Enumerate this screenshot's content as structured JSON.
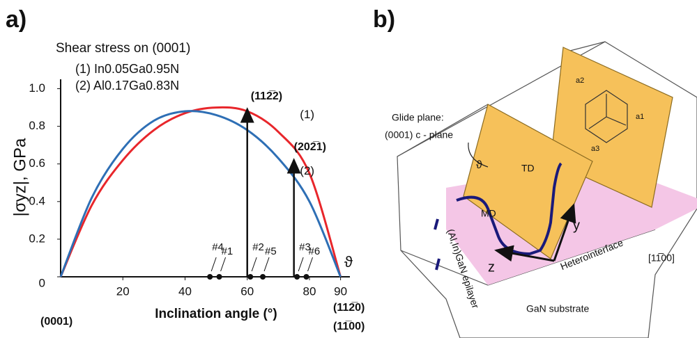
{
  "chart_data": {
    "type": "line",
    "panel_label": "a)",
    "title": "Shear stress on (0001)",
    "x_label": "Inclination angle (°)",
    "y_label": "|σyz|, GPa",
    "x": [
      0,
      10,
      20,
      30,
      40,
      50,
      60,
      70,
      80,
      90
    ],
    "series": [
      {
        "name": "(1) In0.05Ga0.95N",
        "color": "#e8262b",
        "curve_label": "(1)",
        "values": [
          0,
          0.38,
          0.62,
          0.78,
          0.87,
          0.9,
          0.88,
          0.77,
          0.55,
          0
        ]
      },
      {
        "name": "(2) Al0.17Ga0.83N",
        "color": "#2e6fb5",
        "curve_label": "(2)",
        "values": [
          0,
          0.42,
          0.68,
          0.83,
          0.88,
          0.86,
          0.78,
          0.63,
          0.4,
          0
        ]
      }
    ],
    "xlim": [
      0,
      93
    ],
    "ylim": [
      0,
      1.05
    ],
    "xticks": [
      20,
      40,
      60,
      80,
      90
    ],
    "yticks": [
      0,
      0.2,
      0.4,
      0.6,
      0.8,
      {
        "value": 1,
        "label": "1.0"
      }
    ],
    "axis_symbol": "ϑ",
    "grid": false,
    "arrows": [
      {
        "text": "(112̅2)",
        "x": 60,
        "y": 0.9
      },
      {
        "text": "(202̅1)",
        "x": 75,
        "y": 0.63
      }
    ],
    "sample_points": [
      {
        "label": "#4",
        "x": 48
      },
      {
        "label": "#1",
        "x": 51
      },
      {
        "label": "#2",
        "x": 61
      },
      {
        "label": "#5",
        "x": 65
      },
      {
        "label": "#3",
        "x": 76
      },
      {
        "label": "#6",
        "x": 79
      }
    ],
    "axis_notes": [
      "(0001)",
      "(112̅0)",
      "(11̅00)"
    ]
  },
  "diagram": {
    "panel_label": "b)",
    "glide_plane": "Glide plane:",
    "c_plane": "(0001) c - plane",
    "angle": "ϑ",
    "td": "TD",
    "md": "MD",
    "epilayer": "(Al,In)GaN epilayer",
    "y": "y",
    "z": "z",
    "interface": "Heterointerface",
    "direction": "[11̅00]",
    "substrate": "GaN substrate",
    "a1": "a1",
    "a2": "a2",
    "a3": "a3"
  }
}
